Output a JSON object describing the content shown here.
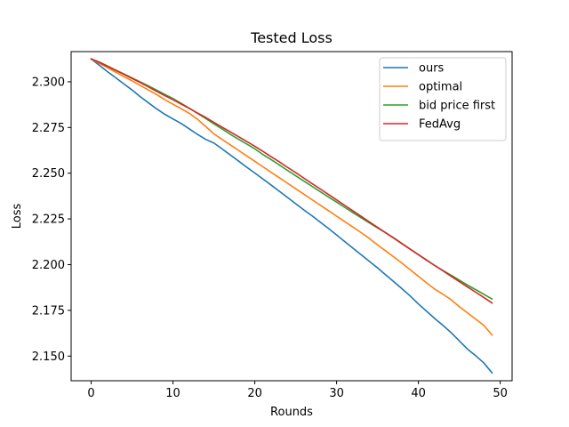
{
  "chart_data": {
    "type": "line",
    "title": "Tested Loss",
    "xlabel": "Rounds",
    "ylabel": "Loss",
    "xlim": [
      -2.45,
      51.45
    ],
    "ylim": [
      2.1365,
      2.3165
    ],
    "xticks": [
      0,
      10,
      20,
      30,
      40,
      50
    ],
    "yticks": [
      2.15,
      2.175,
      2.2,
      2.225,
      2.25,
      2.275,
      2.3
    ],
    "legend_position": "top-right",
    "grid": false,
    "x": [
      0,
      1,
      2,
      3,
      4,
      5,
      6,
      7,
      8,
      9,
      10,
      11,
      12,
      13,
      14,
      15,
      16,
      17,
      18,
      19,
      20,
      21,
      22,
      23,
      24,
      25,
      26,
      27,
      28,
      29,
      30,
      31,
      32,
      33,
      34,
      35,
      36,
      37,
      38,
      39,
      40,
      41,
      42,
      43,
      44,
      45,
      46,
      47,
      48,
      49
    ],
    "series": [
      {
        "name": "ours",
        "color": "#1f77b4",
        "values": [
          2.3125,
          2.309,
          2.3055,
          2.3022,
          2.2988,
          2.2955,
          2.2918,
          2.2885,
          2.2852,
          2.2822,
          2.2797,
          2.2772,
          2.2742,
          2.2712,
          2.2685,
          2.2665,
          2.2633,
          2.26,
          2.2567,
          2.2533,
          2.2501,
          2.2468,
          2.2435,
          2.2401,
          2.2367,
          2.2333,
          2.2299,
          2.2267,
          2.2232,
          2.2198,
          2.2162,
          2.2126,
          2.209,
          2.2054,
          2.2018,
          2.1982,
          2.1944,
          2.1906,
          2.1868,
          2.1828,
          2.1785,
          2.1745,
          2.1705,
          2.1668,
          2.1628,
          2.1583,
          2.1538,
          2.1502,
          2.1462,
          2.1408
        ]
      },
      {
        "name": "optimal",
        "color": "#ff7f0e",
        "values": [
          2.3125,
          2.3101,
          2.3077,
          2.3052,
          2.3028,
          2.3005,
          2.298,
          2.2955,
          2.293,
          2.2902,
          2.2877,
          2.2853,
          2.2827,
          2.2795,
          2.2755,
          2.2715,
          2.2685,
          2.2655,
          2.2625,
          2.2595,
          2.2565,
          2.2535,
          2.2505,
          2.2475,
          2.2445,
          2.2415,
          2.2385,
          2.2355,
          2.2325,
          2.2295,
          2.2265,
          2.2235,
          2.2205,
          2.2175,
          2.2143,
          2.2108,
          2.2075,
          2.2042,
          2.2008,
          2.1972,
          2.1936,
          2.19,
          2.1866,
          2.1838,
          2.1808,
          2.177,
          2.1736,
          2.1702,
          2.1668,
          2.1615
        ]
      },
      {
        "name": "bid price first",
        "color": "#2ca02c",
        "values": [
          2.3125,
          2.3108,
          2.3086,
          2.3064,
          2.3043,
          2.3021,
          2.2999,
          2.2977,
          2.2954,
          2.2931,
          2.2908,
          2.2882,
          2.2855,
          2.2827,
          2.2799,
          2.277,
          2.2742,
          2.2713,
          2.2686,
          2.266,
          2.2633,
          2.2602,
          2.2574,
          2.2545,
          2.2515,
          2.2486,
          2.2457,
          2.2428,
          2.2399,
          2.237,
          2.2342,
          2.2313,
          2.2284,
          2.2256,
          2.2228,
          2.2201,
          2.2174,
          2.2146,
          2.2115,
          2.2085,
          2.2055,
          2.2025,
          2.1995,
          2.1968,
          2.1942,
          2.1915,
          2.1888,
          2.1863,
          2.1838,
          2.1812
        ]
      },
      {
        "name": "FedAvg",
        "color": "#d62728",
        "values": [
          2.3125,
          2.3106,
          2.3084,
          2.3062,
          2.304,
          2.3018,
          2.2996,
          2.2972,
          2.2948,
          2.2924,
          2.2902,
          2.2878,
          2.2854,
          2.2829,
          2.2805,
          2.2778,
          2.2752,
          2.2726,
          2.27,
          2.2674,
          2.2647,
          2.2619,
          2.259,
          2.2562,
          2.2532,
          2.2503,
          2.2473,
          2.2443,
          2.2414,
          2.2384,
          2.2354,
          2.2324,
          2.2294,
          2.2264,
          2.2234,
          2.2204,
          2.2174,
          2.2144,
          2.2114,
          2.2084,
          2.2054,
          2.2024,
          2.1995,
          2.1966,
          2.1936,
          2.1907,
          2.1878,
          2.1849,
          2.182,
          2.179
        ]
      }
    ]
  }
}
